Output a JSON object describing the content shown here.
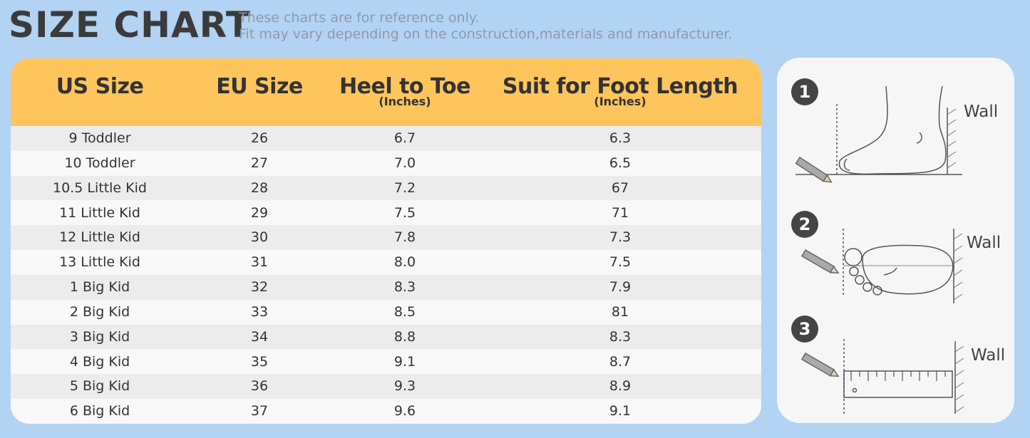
{
  "header": {
    "title": "SIZE CHART",
    "notes": [
      "These charts are for reference only.",
      "Fit may vary depending on the construction,materials and manufacturer."
    ]
  },
  "table": {
    "columns": [
      {
        "title": "US Size"
      },
      {
        "title": "EU Size"
      },
      {
        "title": "Heel to Toe",
        "unit": "(Inches)"
      },
      {
        "title": "Suit for Foot Length",
        "unit": "(Inches)"
      }
    ],
    "rows": [
      [
        "9 Toddler",
        "26",
        "6.7",
        "6.3"
      ],
      [
        "10 Toddler",
        "27",
        "7.0",
        "6.5"
      ],
      [
        "10.5 Little Kid",
        "28",
        "7.2",
        "67"
      ],
      [
        "11 Little Kid",
        "29",
        "7.5",
        "71"
      ],
      [
        "12 Little Kid",
        "30",
        "7.8",
        "7.3"
      ],
      [
        "13 Little Kid",
        "31",
        "8.0",
        "7.5"
      ],
      [
        "1 Big Kid",
        "32",
        "8.3",
        "7.9"
      ],
      [
        "2 Big Kid",
        "33",
        "8.5",
        "81"
      ],
      [
        "3 Big Kid",
        "34",
        "8.8",
        "8.3"
      ],
      [
        "4 Big Kid",
        "35",
        "9.1",
        "8.7"
      ],
      [
        "5 Big Kid",
        "36",
        "9.3",
        "8.9"
      ],
      [
        "6 Big Kid",
        "37",
        "9.6",
        "9.1"
      ]
    ]
  },
  "steps": [
    {
      "number": "1",
      "label": "Wall"
    },
    {
      "number": "2",
      "label": "Wall"
    },
    {
      "number": "3",
      "label": "Wall"
    }
  ]
}
